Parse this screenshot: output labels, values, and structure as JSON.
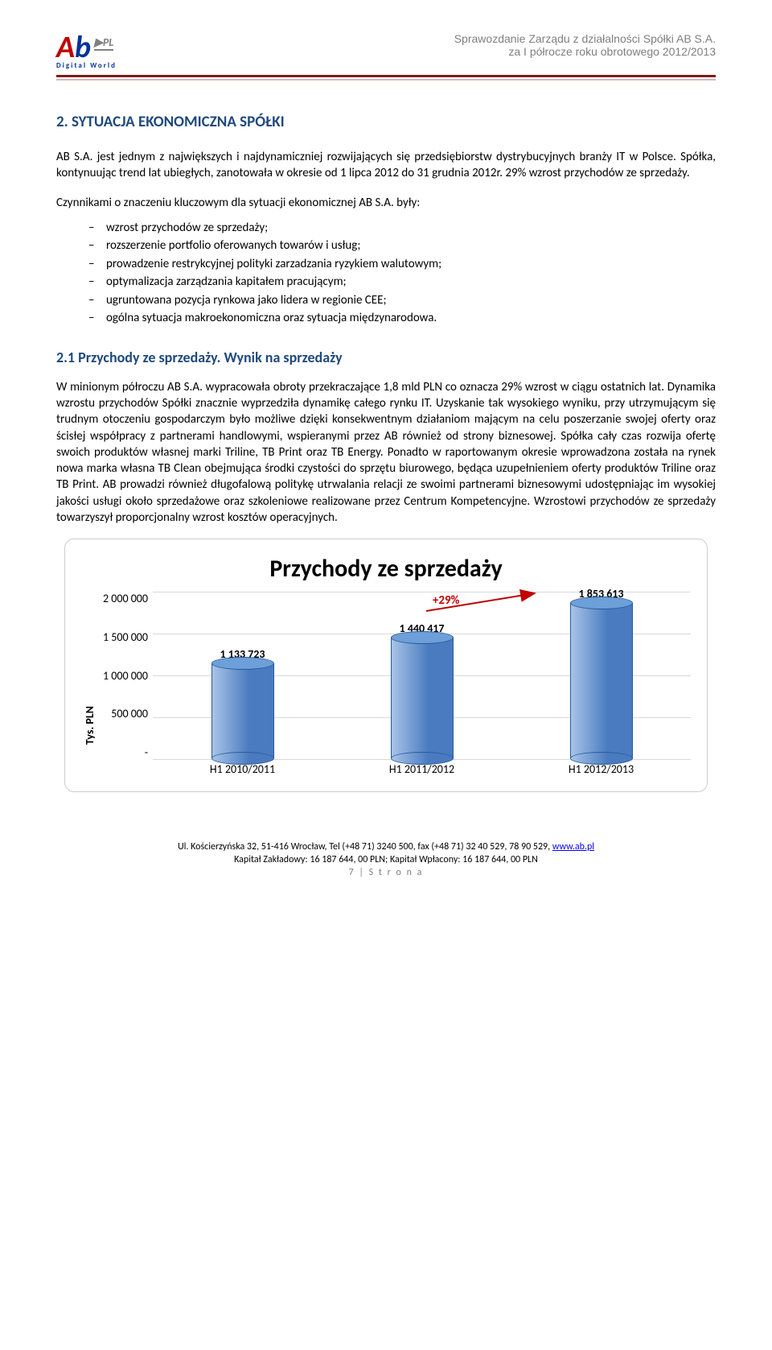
{
  "header": {
    "logo_a": "A",
    "logo_b": "b",
    "logo_pl": "▶PL",
    "logo_sub": "Digital World",
    "title_line1": "Sprawozdanie Zarządu z działalności Spółki AB S.A.",
    "title_line2": "za I półrocze roku obrotowego 2012/2013"
  },
  "section": {
    "heading": "2.  SYTUACJA EKONOMICZNA SPÓŁKI",
    "para1": "AB S.A. jest jednym z największych i najdynamiczniej rozwijających się przedsiębiorstw dystrybucyjnych branży IT w Polsce. Spółka, kontynuując trend lat ubiegłych, zanotowała w okresie od 1 lipca 2012 do 31 grudnia 2012r. 29% wzrost przychodów ze sprzedaży.",
    "para2_lead": "Czynnikami o znaczeniu kluczowym dla sytuacji ekonomicznej AB S.A. były:",
    "bullets": [
      "wzrost przychodów ze sprzedaży;",
      "rozszerzenie portfolio oferowanych towarów i usług;",
      "prowadzenie restrykcyjnej polityki zarzadzania ryzykiem walutowym;",
      "optymalizacja zarządzania kapitałem pracującym;",
      "ugruntowana pozycja rynkowa jako lidera w regionie CEE;",
      "ogólna sytuacja makroekonomiczna oraz sytuacja międzynarodowa."
    ],
    "sub_heading": "2.1 Przychody ze sprzedaży. Wynik na sprzedaży",
    "para3": "W minionym półroczu AB S.A. wypracowała obroty przekraczające 1,8 mld PLN co oznacza 29% wzrost w ciągu ostatnich lat. Dynamika wzrostu przychodów Spółki znacznie wyprzedziła dynamikę całego rynku IT. Uzyskanie tak wysokiego wyniku, przy utrzymującym się trudnym otoczeniu gospodarczym było możliwe dzięki konsekwentnym działaniom mającym na celu poszerzanie swojej oferty oraz ścisłej współpracy z partnerami handlowymi, wspieranymi przez AB również od strony biznesowej. Spółka cały czas rozwija ofertę swoich produktów własnej marki Triline, TB Print oraz TB Energy. Ponadto w raportowanym okresie wprowadzona została na rynek nowa marka własna TB Clean obejmująca środki czystości do sprzętu biurowego, będąca uzupełnieniem oferty produktów Triline oraz TB Print. AB prowadzi również długofalową politykę utrwalania relacji ze swoimi partnerami biznesowymi udostępniając im wysokiej jakości usługi około sprzedażowe oraz szkoleniowe realizowane przez Centrum Kompetencyjne. Wzrostowi przychodów ze sprzedaży towarzyszył proporcjonalny wzrost kosztów operacyjnych."
  },
  "chart": {
    "title": "Przychody ze sprzedaży",
    "y_axis_label": "Tys. PLN",
    "y_ticks": [
      "2 000 000",
      "1 500 000",
      "1 000 000",
      "500 000",
      "-"
    ],
    "ymax": 2000000,
    "categories": [
      "H1 2010/2011",
      "H1 2011/2012",
      "H1 2012/2013"
    ],
    "values": [
      1133723,
      1440417,
      1853613
    ],
    "value_labels": [
      "1 133 723",
      "1 440 417",
      "1 853 613"
    ],
    "annotation": "+29%",
    "annotation_color": "#c00000",
    "bar_fill_light": "#a8c4e8",
    "bar_fill_dark": "#4a7bc0",
    "bar_top_fill": "#6d9fd8",
    "grid_color": "#d9d9d9",
    "arrow_color": "#c00000"
  },
  "footer": {
    "line1_pre": "Ul. Kościerzyńska 32, 51-416 Wrocław, Tel (+48 71) 3240 500, fax (+48 71) 32 40 529, 78 90 529, ",
    "link": "www.ab.pl",
    "line2": "Kapitał Zakładowy: 16 187 644, 00 PLN; Kapitał Wpłacony: 16 187 644, 00 PLN",
    "page": "7 | S t r o n a"
  }
}
